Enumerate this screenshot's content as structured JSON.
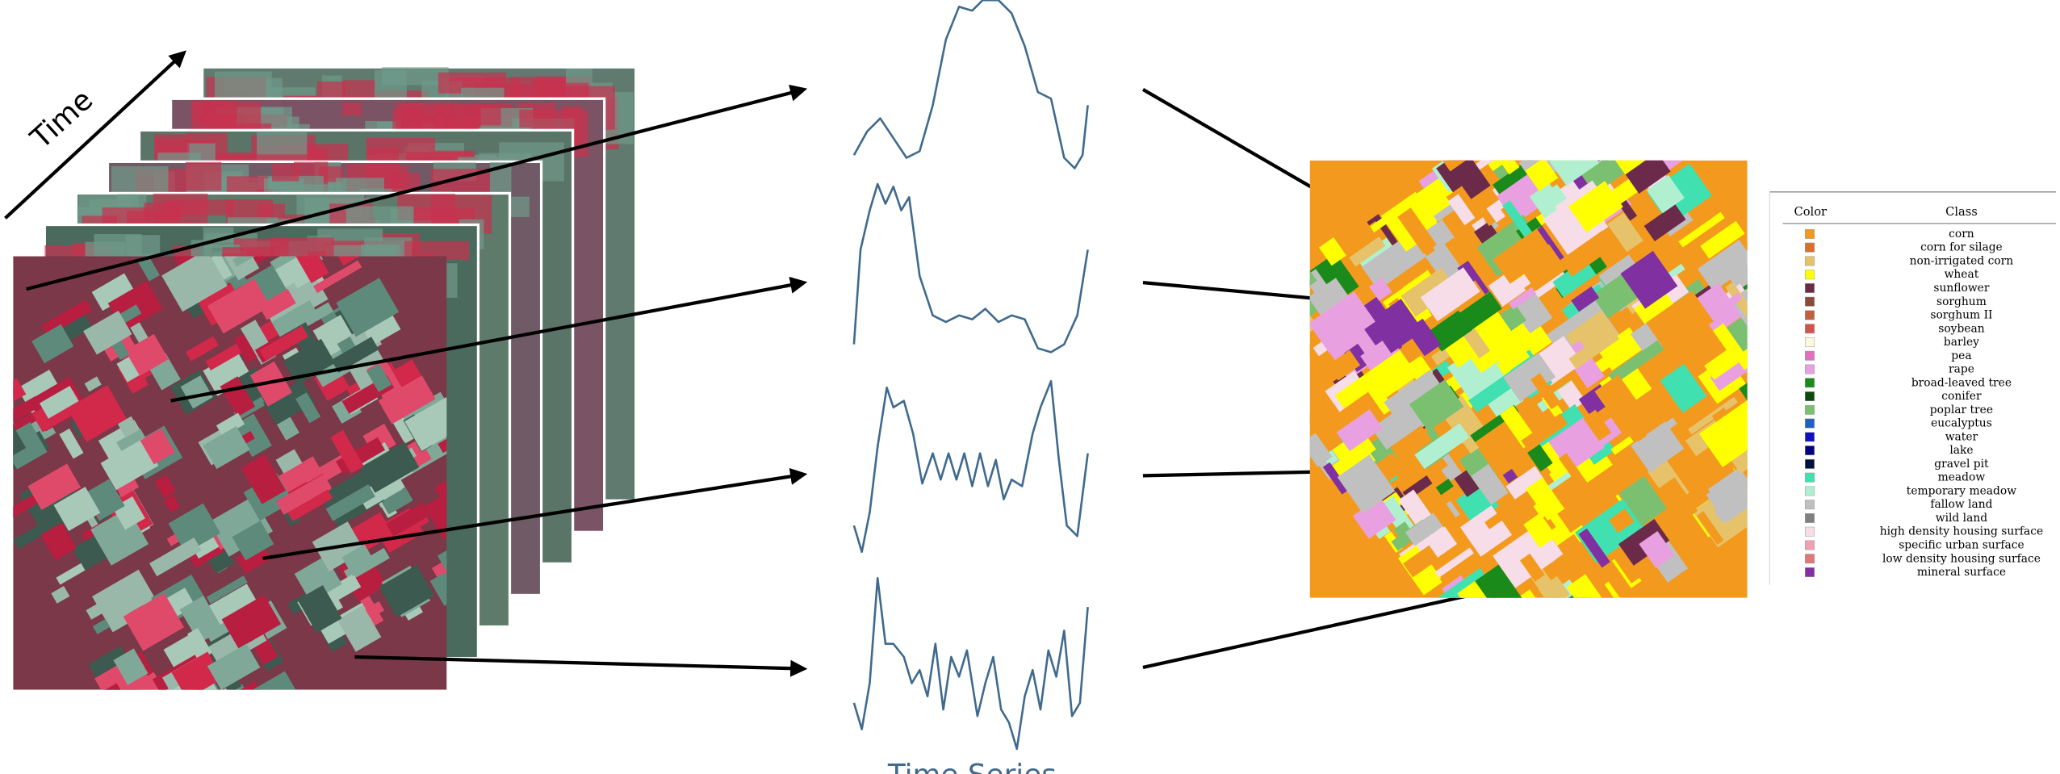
{
  "time_label": "Time",
  "series_label": "Time Series",
  "legend": {
    "header": [
      "Color",
      "Class"
    ],
    "items": [
      {
        "label": "corn",
        "color": "#f39a1e"
      },
      {
        "label": "corn for silage",
        "color": "#d9702c"
      },
      {
        "label": "non-irrigated corn",
        "color": "#e6c36a"
      },
      {
        "label": "wheat",
        "color": "#ffff00"
      },
      {
        "label": "sunflower",
        "color": "#6b2a4a"
      },
      {
        "label": "sorghum",
        "color": "#8b4a3a"
      },
      {
        "label": "sorghum II",
        "color": "#c0603f"
      },
      {
        "label": "soybean",
        "color": "#d2554a"
      },
      {
        "label": "barley",
        "color": "#fff8e0"
      },
      {
        "label": "pea",
        "color": "#e070c0"
      },
      {
        "label": "rape",
        "color": "#e8a0e0"
      },
      {
        "label": "broad-leaved tree",
        "color": "#1a8a1a"
      },
      {
        "label": "conifer",
        "color": "#0a4a0a"
      },
      {
        "label": "poplar tree",
        "color": "#7ac070"
      },
      {
        "label": "eucalyptus",
        "color": "#2060c0"
      },
      {
        "label": "water",
        "color": "#1010c0"
      },
      {
        "label": "lake",
        "color": "#000080"
      },
      {
        "label": "gravel pit",
        "color": "#001040"
      },
      {
        "label": "meadow",
        "color": "#40e0b0"
      },
      {
        "label": "temporary meadow",
        "color": "#b0f0d0"
      },
      {
        "label": "fallow land",
        "color": "#c0c0c0"
      },
      {
        "label": "wild land",
        "color": "#808080"
      },
      {
        "label": "high density housing surface",
        "color": "#f6dde8"
      },
      {
        "label": "specific urban surface",
        "color": "#f0a0b0"
      },
      {
        "label": "low density housing surface",
        "color": "#e07878"
      },
      {
        "label": "mineral surface",
        "color": "#8030a0"
      }
    ]
  }
}
